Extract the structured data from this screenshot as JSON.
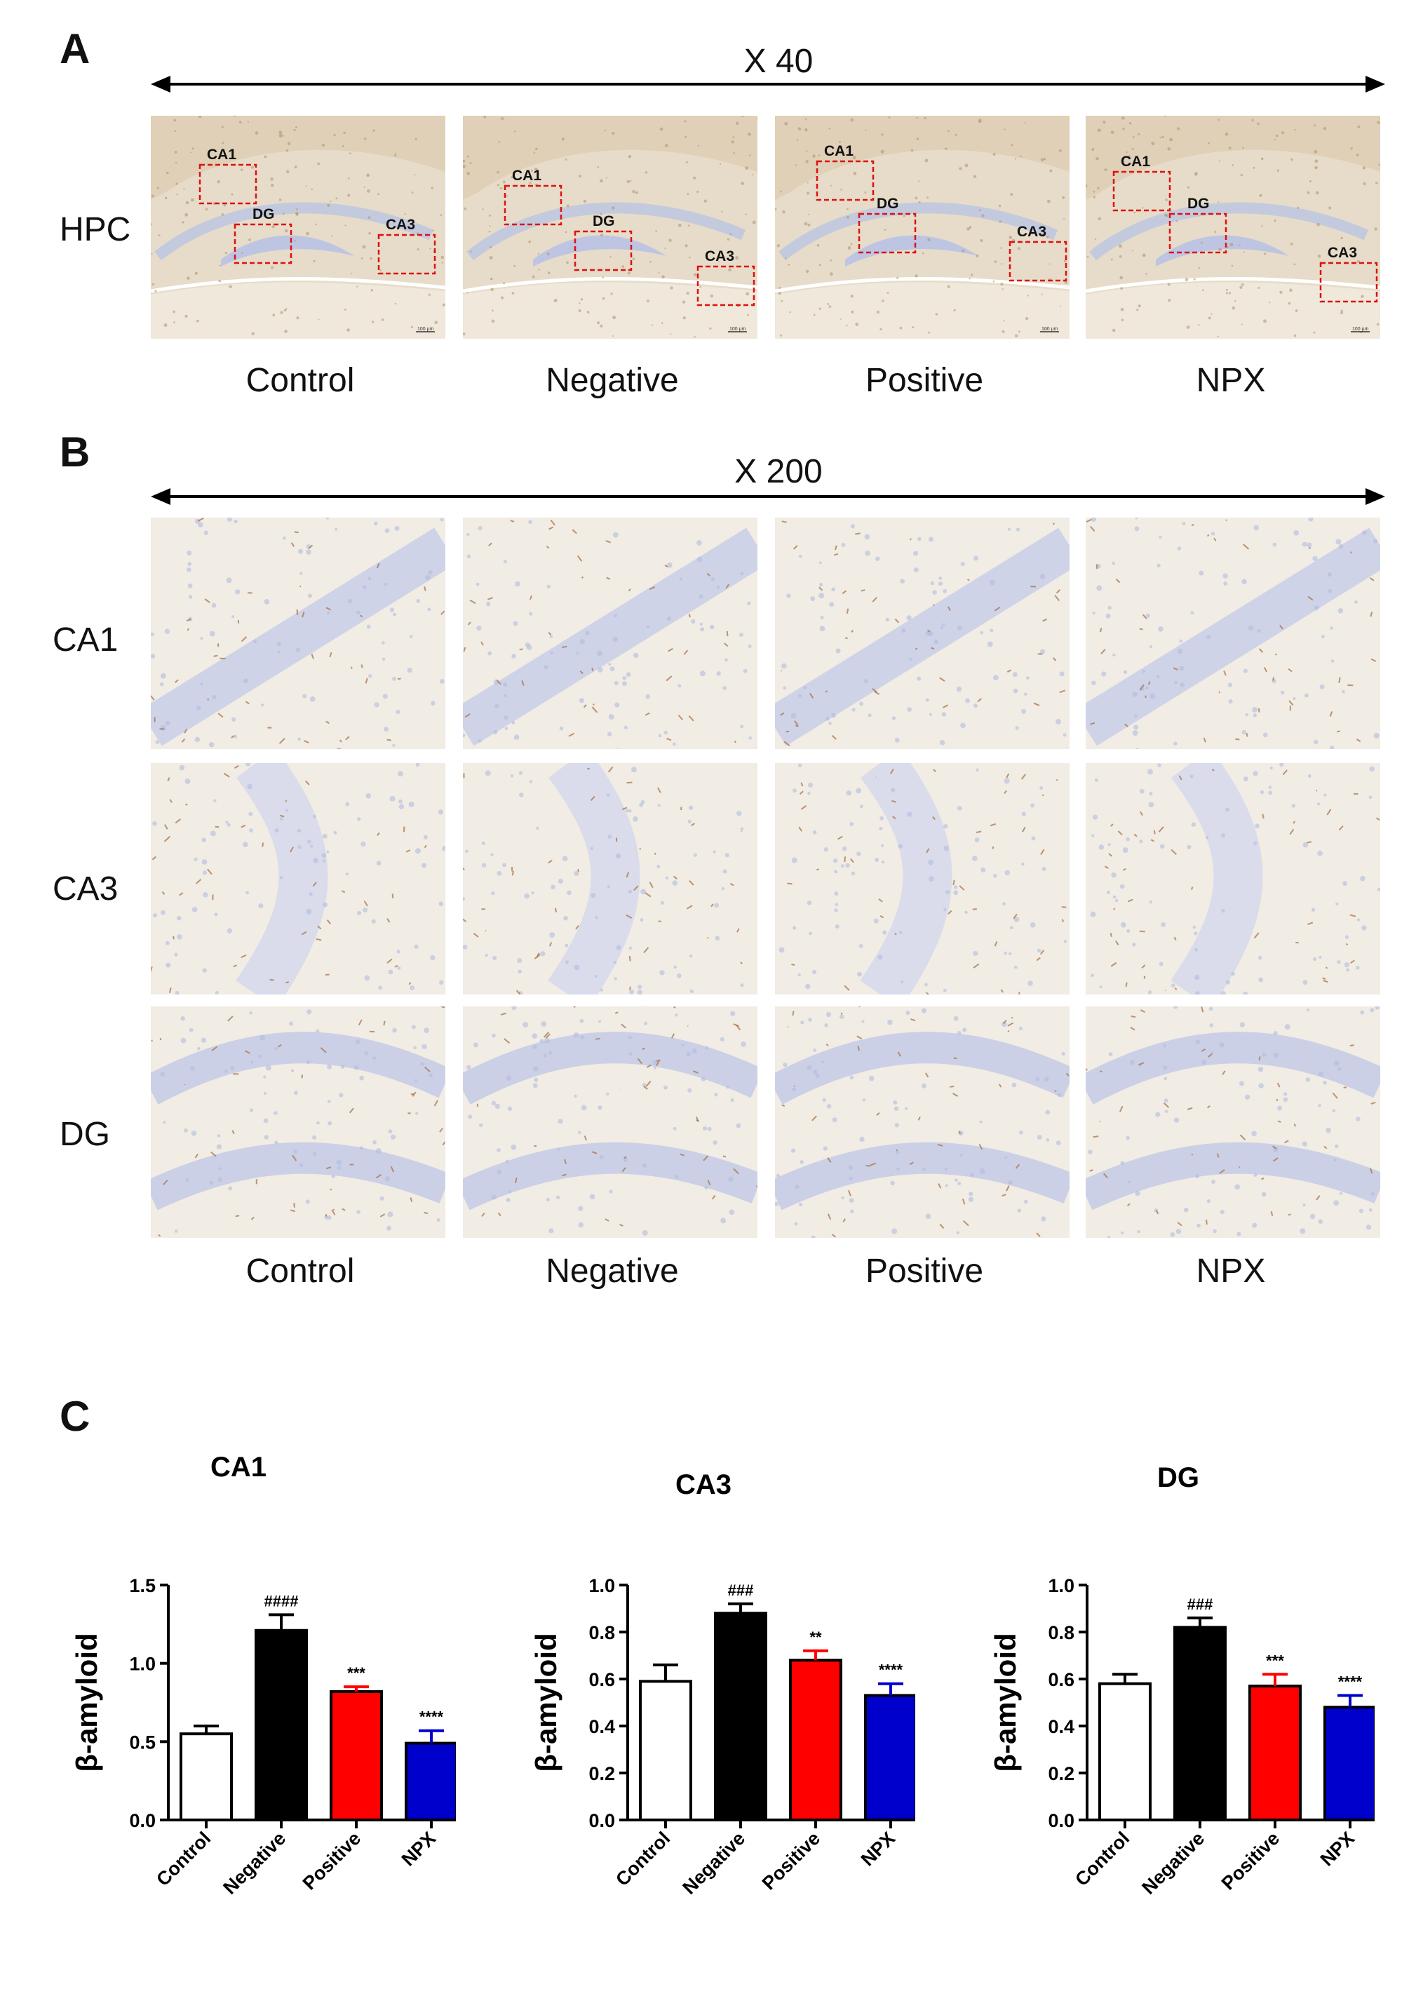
{
  "panels": {
    "a": {
      "letter": "A",
      "magnification": "X 40",
      "row_label": "HPC",
      "region_labels": [
        "CA1",
        "DG",
        "CA3"
      ],
      "scale_label": "100 µm"
    },
    "b": {
      "letter": "B",
      "magnification": "X 200",
      "row_labels": [
        "CA1",
        "CA3",
        "DG"
      ]
    },
    "c": {
      "letter": "C"
    }
  },
  "groups": [
    "Control",
    "Negative",
    "Positive",
    "NPX"
  ],
  "colors": {
    "control": "#ffffff",
    "negative": "#000000",
    "positive": "#ff0000",
    "npx": "#0000cc",
    "roi_box": "#dd1111",
    "tissue_a": "#e7dcc9",
    "tissue_b": "#f1ebe0"
  },
  "chart_data": [
    {
      "type": "bar",
      "title": "CA1",
      "ylabel": "β-amyloid",
      "categories": [
        "Control",
        "Negative",
        "Positive",
        "NPX"
      ],
      "values": [
        0.55,
        1.21,
        0.82,
        0.49
      ],
      "errors": [
        0.05,
        0.1,
        0.03,
        0.08
      ],
      "significance": [
        "",
        "####",
        "***",
        "****"
      ],
      "colors": [
        "#ffffff",
        "#000000",
        "#ff0000",
        "#0000cc"
      ],
      "ylim": [
        0,
        1.5
      ],
      "yticks": [
        0.0,
        0.5,
        1.0,
        1.5
      ],
      "ytick_labels": [
        "0.0",
        "0.5",
        "1.0",
        "1.5"
      ]
    },
    {
      "type": "bar",
      "title": "CA3",
      "ylabel": "β-amyloid",
      "categories": [
        "Control",
        "Negative",
        "Positive",
        "NPX"
      ],
      "values": [
        0.59,
        0.88,
        0.68,
        0.53
      ],
      "errors": [
        0.07,
        0.04,
        0.04,
        0.05
      ],
      "significance": [
        "",
        "###",
        "**",
        "****"
      ],
      "colors": [
        "#ffffff",
        "#000000",
        "#ff0000",
        "#0000cc"
      ],
      "ylim": [
        0,
        1.0
      ],
      "yticks": [
        0.0,
        0.2,
        0.4,
        0.6,
        0.8,
        1.0
      ],
      "ytick_labels": [
        "0.0",
        "0.2",
        "0.4",
        "0.6",
        "0.8",
        "1.0"
      ]
    },
    {
      "type": "bar",
      "title": "DG",
      "ylabel": "β-amyloid",
      "categories": [
        "Control",
        "Negative",
        "Positive",
        "NPX"
      ],
      "values": [
        0.58,
        0.82,
        0.57,
        0.48
      ],
      "errors": [
        0.04,
        0.04,
        0.05,
        0.05
      ],
      "significance": [
        "",
        "###",
        "***",
        "****"
      ],
      "colors": [
        "#ffffff",
        "#000000",
        "#ff0000",
        "#0000cc"
      ],
      "ylim": [
        0,
        1.0
      ],
      "yticks": [
        0.0,
        0.2,
        0.4,
        0.6,
        0.8,
        1.0
      ],
      "ytick_labels": [
        "0.0",
        "0.2",
        "0.4",
        "0.6",
        "0.8",
        "1.0"
      ]
    }
  ]
}
